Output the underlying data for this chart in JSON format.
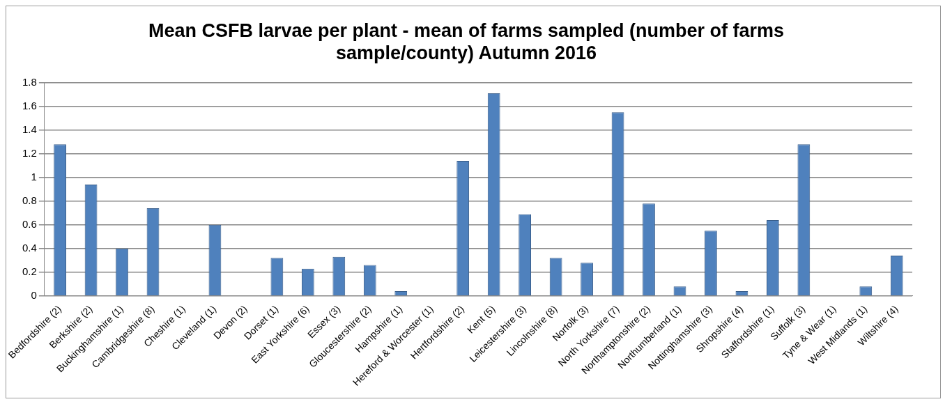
{
  "chart_data": {
    "type": "bar",
    "title": "Mean CSFB larvae per plant - mean of farms sampled (number of farms sample/county) Autumn 2016",
    "categories": [
      "Bedfordshire (2)",
      "Berkshire (2)",
      "Buckinghamshire (1)",
      "Cambridgeshire (8)",
      "Cheshire (1)",
      "Cleveland (1)",
      "Devon (2)",
      "Dorset (1)",
      "East Yorkshire (6)",
      "Essex (3)",
      "Gloucestershire (2)",
      "Hampshire (1)",
      "Hereford & Worcester (1)",
      "Hertfordshire (2)",
      "Kent (5)",
      "Leicestershire (3)",
      "Lincolnshire (8)",
      "Norfolk (3)",
      "North Yorkshire (7)",
      "Northamptonshire (2)",
      "Northumberland (1)",
      "Nottinghamshire (3)",
      "Shropshire (4)",
      "Staffordshire (1)",
      "Suffolk (3)",
      "Tyne & Wear (1)",
      "West Midlands (1)",
      "Wiltshire (4)"
    ],
    "values": [
      1.28,
      0.94,
      0.4,
      0.74,
      0,
      0.6,
      0,
      0.32,
      0.23,
      0.33,
      0.26,
      0.04,
      0,
      1.14,
      1.71,
      0.69,
      0.32,
      0.28,
      1.55,
      0.78,
      0.08,
      0.55,
      0.04,
      0.64,
      1.28,
      0,
      0.08,
      0.34
    ],
    "color": "#4f81bd",
    "ylim": [
      0,
      1.8
    ],
    "yticks": [
      0,
      0.2,
      0.4,
      0.6,
      0.8,
      1,
      1.2,
      1.4,
      1.6,
      1.8
    ],
    "grid": "y"
  }
}
